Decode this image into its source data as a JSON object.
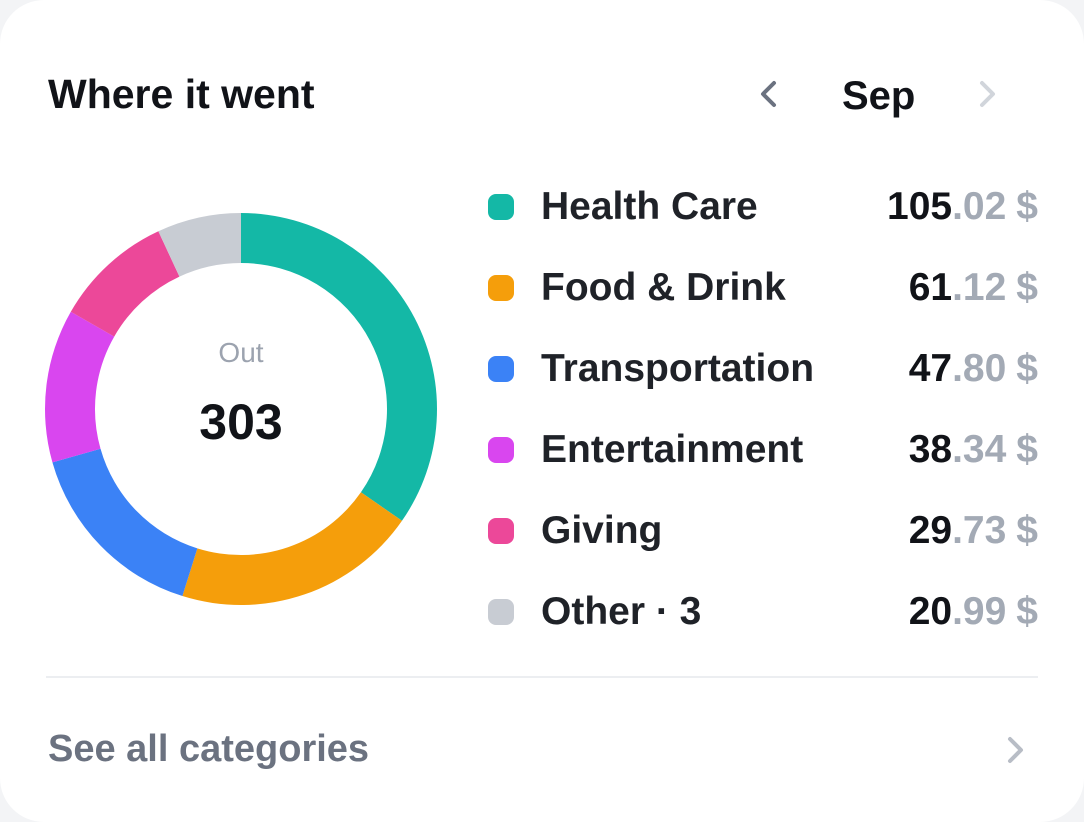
{
  "header": {
    "title": "Where it went",
    "month": "Sep"
  },
  "center": {
    "label": "Out",
    "value": "303"
  },
  "chart_data": {
    "type": "pie",
    "categories": [
      "Health Care",
      "Food & Drink",
      "Transportation",
      "Entertainment",
      "Giving",
      "Other · 3"
    ],
    "values": [
      105.02,
      61.12,
      47.8,
      38.34,
      29.73,
      20.99
    ],
    "colors": [
      "#14b8a6",
      "#f59e0b",
      "#3b82f6",
      "#d946ef",
      "#ec4899",
      "#c8ccd3"
    ]
  },
  "legend": [
    {
      "name": "Health Care",
      "int": "105",
      "dec": ".02",
      "currency": "$",
      "color": "#14b8a6"
    },
    {
      "name": "Food & Drink",
      "int": "61",
      "dec": ".12",
      "currency": "$",
      "color": "#f59e0b"
    },
    {
      "name": "Transportation",
      "int": "47",
      "dec": ".80",
      "currency": "$",
      "color": "#3b82f6"
    },
    {
      "name": "Entertainment",
      "int": "38",
      "dec": ".34",
      "currency": "$",
      "color": "#d946ef"
    },
    {
      "name": "Giving",
      "int": "29",
      "dec": ".73",
      "currency": "$",
      "color": "#ec4899"
    },
    {
      "name": "Other · 3",
      "int": "20",
      "dec": ".99",
      "currency": "$",
      "color": "#c8ccd3"
    }
  ],
  "footer": {
    "see_all_label": "See all categories"
  },
  "icons": {
    "prev": "chevron-left-icon",
    "next": "chevron-right-icon",
    "see_all": "chevron-right-icon"
  }
}
